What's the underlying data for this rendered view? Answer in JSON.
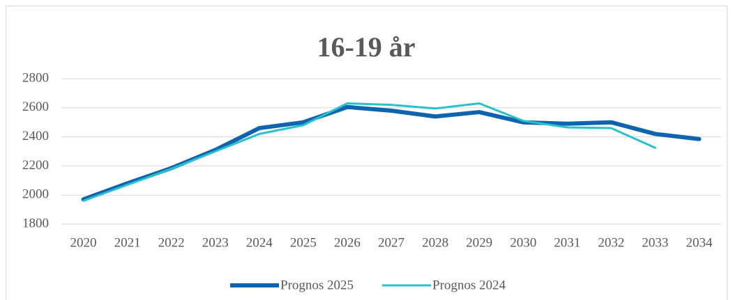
{
  "chart_data": {
    "type": "line",
    "title": "16-19 år",
    "categories": [
      "2020",
      "2021",
      "2022",
      "2023",
      "2024",
      "2025",
      "2026",
      "2027",
      "2028",
      "2029",
      "2030",
      "2031",
      "2032",
      "2033",
      "2034"
    ],
    "series": [
      {
        "name": "Prognos 2025",
        "color": "#0f64b0",
        "values": [
          1970,
          2080,
          2185,
          2310,
          2460,
          2500,
          2605,
          2580,
          2540,
          2570,
          2500,
          2490,
          2500,
          2420,
          2385
        ]
      },
      {
        "name": "Prognos 2024",
        "color": "#27c2cc",
        "values": [
          1960,
          2070,
          2180,
          2300,
          2420,
          2480,
          2630,
          2620,
          2595,
          2630,
          2510,
          2465,
          2460,
          2325,
          null
        ]
      }
    ],
    "ylim": [
      1800,
      2800
    ],
    "yticks": [
      1800,
      2000,
      2200,
      2400,
      2600,
      2800
    ],
    "grid": true,
    "legend": "bottom"
  }
}
